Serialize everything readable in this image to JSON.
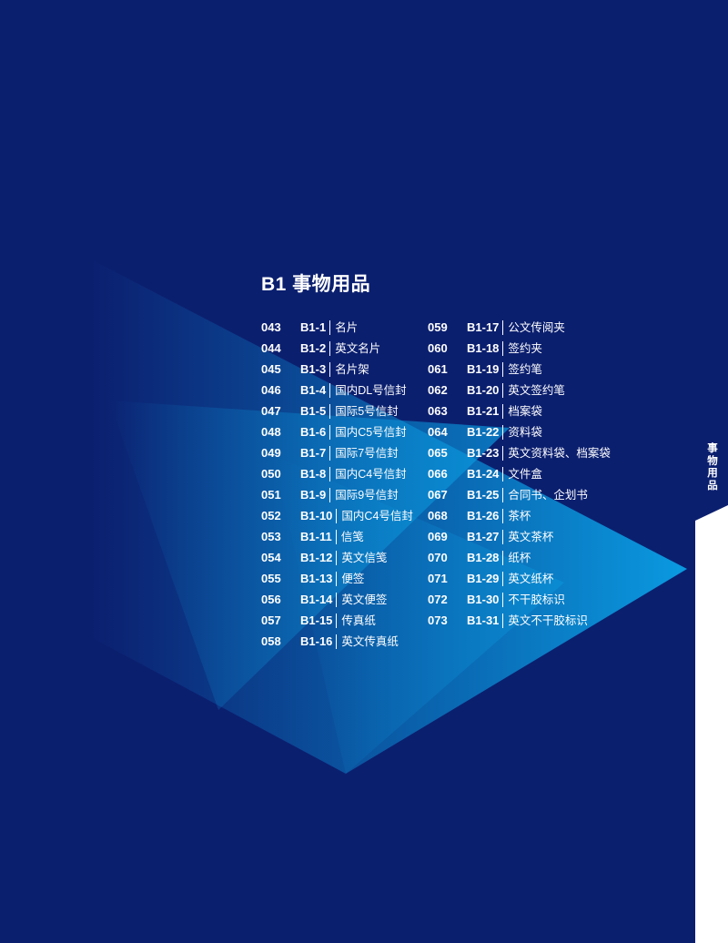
{
  "section_title": "B1 事物用品",
  "side_tab": "事物用品",
  "colors": {
    "background": "#0b1f6f",
    "accent": "#0a9be0",
    "strip": "#ffffff"
  },
  "left_items": [
    {
      "page": "043",
      "code": "B1-1",
      "name": "名片"
    },
    {
      "page": "044",
      "code": "B1-2",
      "name": "英文名片"
    },
    {
      "page": "045",
      "code": "B1-3",
      "name": "名片架"
    },
    {
      "page": "046",
      "code": "B1-4",
      "name": "国内DL号信封"
    },
    {
      "page": "047",
      "code": "B1-5",
      "name": "国际5号信封"
    },
    {
      "page": "048",
      "code": "B1-6",
      "name": "国内C5号信封"
    },
    {
      "page": "049",
      "code": "B1-7",
      "name": "国际7号信封"
    },
    {
      "page": "050",
      "code": "B1-8",
      "name": "国内C4号信封"
    },
    {
      "page": "051",
      "code": "B1-9",
      "name": "国际9号信封"
    },
    {
      "page": "052",
      "code": "B1-10",
      "name": "国内C4号信封"
    },
    {
      "page": "053",
      "code": "B1-11",
      "name": "信笺"
    },
    {
      "page": "054",
      "code": "B1-12",
      "name": "英文信笺"
    },
    {
      "page": "055",
      "code": "B1-13",
      "name": "便签"
    },
    {
      "page": "056",
      "code": "B1-14",
      "name": "英文便签"
    },
    {
      "page": "057",
      "code": "B1-15",
      "name": "传真纸"
    },
    {
      "page": "058",
      "code": "B1-16",
      "name": "英文传真纸"
    }
  ],
  "right_items": [
    {
      "page": "059",
      "code": "B1-17",
      "name": "公文传阅夹"
    },
    {
      "page": "060",
      "code": "B1-18",
      "name": "签约夹"
    },
    {
      "page": "061",
      "code": "B1-19",
      "name": "签约笔"
    },
    {
      "page": "062",
      "code": "B1-20",
      "name": "英文签约笔"
    },
    {
      "page": "063",
      "code": "B1-21",
      "name": "档案袋"
    },
    {
      "page": "064",
      "code": "B1-22",
      "name": "资料袋"
    },
    {
      "page": "065",
      "code": "B1-23",
      "name": "英文资料袋、档案袋"
    },
    {
      "page": "066",
      "code": "B1-24",
      "name": "文件盒"
    },
    {
      "page": "067",
      "code": "B1-25",
      "name": "合同书、企划书"
    },
    {
      "page": "068",
      "code": "B1-26",
      "name": "茶杯"
    },
    {
      "page": "069",
      "code": "B1-27",
      "name": "英文茶杯"
    },
    {
      "page": "070",
      "code": "B1-28",
      "name": "纸杯"
    },
    {
      "page": "071",
      "code": "B1-29",
      "name": "英文纸杯"
    },
    {
      "page": "072",
      "code": "B1-30",
      "name": "不干胶标识"
    },
    {
      "page": "073",
      "code": "B1-31",
      "name": "英文不干胶标识"
    }
  ]
}
